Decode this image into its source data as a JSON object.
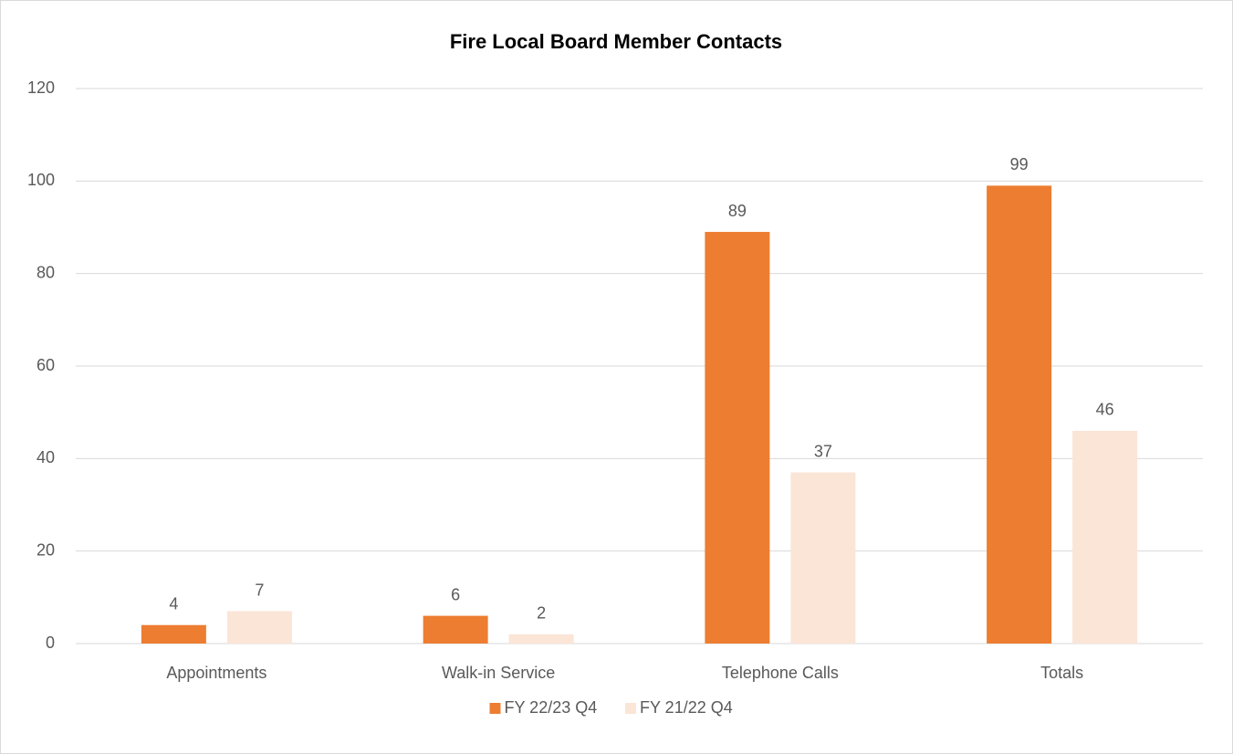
{
  "chart_data": {
    "type": "bar",
    "title": "Fire Local Board Member Contacts",
    "categories": [
      "Appointments",
      "Walk-in Service",
      "Telephone Calls",
      "Totals"
    ],
    "series": [
      {
        "name": "FY 22/23 Q4",
        "color": "#ED7D31",
        "values": [
          4,
          6,
          89,
          99
        ]
      },
      {
        "name": "FY 21/22 Q4",
        "color": "#FBE5D6",
        "values": [
          7,
          2,
          37,
          46
        ]
      }
    ],
    "ylim": [
      0,
      120
    ],
    "yticks": [
      0,
      20,
      40,
      60,
      80,
      100,
      120
    ],
    "grid": true,
    "legend": "bottom"
  }
}
